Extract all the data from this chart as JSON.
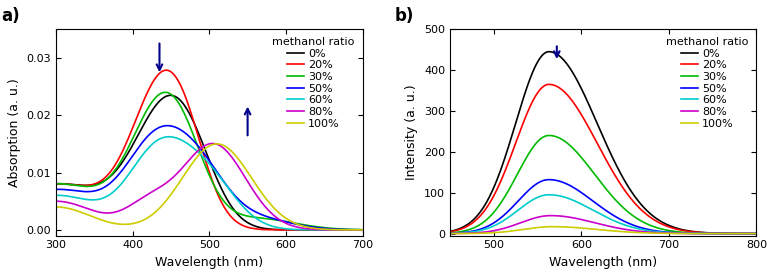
{
  "panel_a": {
    "xlabel": "Wavelength (nm)",
    "ylabel": "Absorption (a. u.)",
    "xlim": [
      300,
      700
    ],
    "ylim": [
      -0.001,
      0.035
    ],
    "yticks": [
      0.0,
      0.01,
      0.02,
      0.03
    ],
    "xticks": [
      300,
      400,
      500,
      600,
      700
    ],
    "label": "a)",
    "series": [
      {
        "label": "0%",
        "color": "#000000"
      },
      {
        "label": "20%",
        "color": "#ff0000"
      },
      {
        "label": "30%",
        "color": "#00bb00"
      },
      {
        "label": "50%",
        "color": "#0000ff"
      },
      {
        "label": "60%",
        "color": "#00cccc"
      },
      {
        "label": "80%",
        "color": "#cc00cc"
      },
      {
        "label": "100%",
        "color": "#cccc00"
      }
    ]
  },
  "panel_b": {
    "xlabel": "Wavelength (nm)",
    "ylabel": "Intensity (a. u.)",
    "xlim": [
      450,
      800
    ],
    "ylim": [
      -5,
      500
    ],
    "yticks": [
      0,
      100,
      200,
      300,
      400,
      500
    ],
    "xticks": [
      500,
      600,
      700,
      800
    ],
    "label": "b)",
    "series": [
      {
        "label": "0%",
        "color": "#000000",
        "peak": 445,
        "peak_x": 563,
        "sigma_l": 38,
        "sigma_r": 55
      },
      {
        "label": "20%",
        "color": "#ff0000",
        "peak": 365,
        "peak_x": 563,
        "sigma_l": 38,
        "sigma_r": 55
      },
      {
        "label": "30%",
        "color": "#00bb00",
        "peak": 240,
        "peak_x": 563,
        "sigma_l": 36,
        "sigma_r": 52
      },
      {
        "label": "50%",
        "color": "#0000ff",
        "peak": 132,
        "peak_x": 563,
        "sigma_l": 35,
        "sigma_r": 50
      },
      {
        "label": "60%",
        "color": "#00cccc",
        "peak": 95,
        "peak_x": 563,
        "sigma_l": 35,
        "sigma_r": 50
      },
      {
        "label": "80%",
        "color": "#cc00cc",
        "peak": 44,
        "peak_x": 565,
        "sigma_l": 34,
        "sigma_r": 50
      },
      {
        "label": "100%",
        "color": "#cccc00",
        "peak": 17,
        "peak_x": 567,
        "sigma_l": 33,
        "sigma_r": 50
      }
    ]
  },
  "legend_labels": [
    "0%",
    "20%",
    "30%",
    "50%",
    "60%",
    "80%",
    "100%"
  ],
  "legend_colors": [
    "#000000",
    "#ff0000",
    "#00bb00",
    "#0000ff",
    "#00cccc",
    "#cc00cc",
    "#cccc00"
  ],
  "arrow_color": "#00008b",
  "lw": 1.2,
  "fontsize_label": 9,
  "fontsize_tick": 8,
  "fontsize_legend": 8,
  "fontsize_panel": 12
}
